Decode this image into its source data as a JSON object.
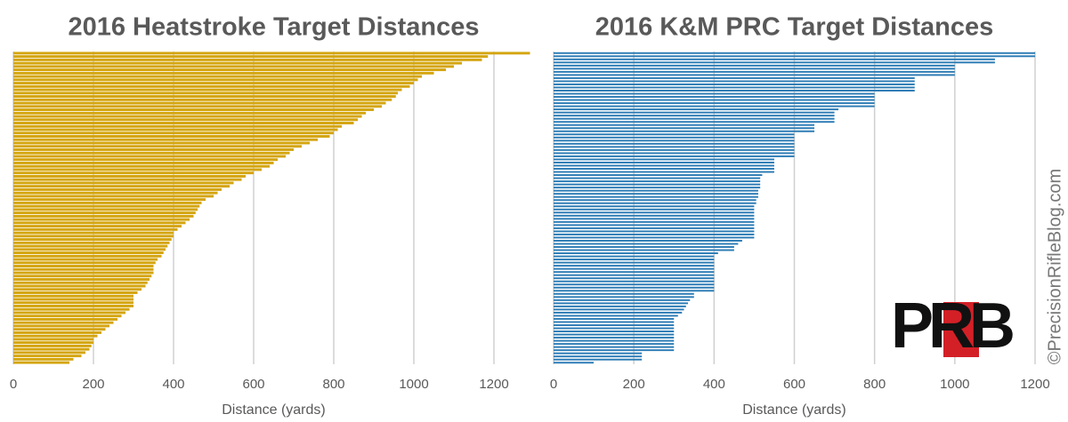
{
  "chart_data": [
    {
      "type": "bar",
      "orientation": "horizontal",
      "title": "2016 Heatstroke Target Distances",
      "x_label": "Distance (yards)",
      "color": "#d4a50f",
      "xlim": [
        0,
        1300
      ],
      "xticks": [
        0,
        200,
        400,
        600,
        800,
        1000,
        1200
      ],
      "grid": true,
      "categories": [
        null,
        null,
        null,
        null,
        null,
        null,
        null,
        null,
        null,
        null,
        null,
        null,
        null,
        null,
        null,
        null,
        null,
        null,
        null,
        null,
        null,
        null,
        null,
        null,
        null,
        null,
        null,
        null,
        null,
        null,
        null,
        null,
        null,
        null,
        null,
        null,
        null,
        null,
        null,
        null,
        null,
        null,
        null,
        null,
        null,
        null,
        null,
        null,
        null,
        null,
        null,
        null,
        null,
        null,
        null,
        null,
        null,
        null,
        null,
        null,
        null,
        null,
        null,
        null,
        null,
        null,
        null,
        null,
        null,
        null,
        null,
        null,
        null,
        null,
        null,
        null,
        null,
        null,
        null,
        null,
        null,
        null,
        null,
        null,
        null,
        null,
        null,
        null,
        null,
        null,
        null,
        null,
        null,
        null
      ],
      "values": [
        1290,
        1185,
        1170,
        1120,
        1100,
        1080,
        1050,
        1020,
        1010,
        1000,
        990,
        970,
        960,
        955,
        945,
        930,
        920,
        900,
        880,
        870,
        860,
        850,
        820,
        810,
        800,
        790,
        760,
        740,
        720,
        700,
        690,
        680,
        660,
        650,
        640,
        620,
        600,
        580,
        570,
        550,
        540,
        520,
        510,
        500,
        480,
        470,
        465,
        460,
        455,
        450,
        440,
        430,
        420,
        410,
        400,
        400,
        395,
        390,
        385,
        380,
        375,
        370,
        360,
        355,
        350,
        350,
        350,
        345,
        340,
        335,
        330,
        320,
        310,
        300,
        300,
        300,
        300,
        290,
        280,
        270,
        260,
        250,
        240,
        230,
        220,
        210,
        200,
        200,
        195,
        190,
        180,
        170,
        150,
        140
      ]
    },
    {
      "type": "bar",
      "orientation": "horizontal",
      "title": "2016 K&M PRC Target Distances",
      "x_label": "Distance (yards)",
      "color": "#2b7bb4",
      "xlim": [
        0,
        1200
      ],
      "xticks": [
        0,
        200,
        400,
        600,
        800,
        1000,
        1200
      ],
      "grid": true,
      "categories": [
        null,
        null,
        null,
        null,
        null,
        null,
        null,
        null,
        null,
        null,
        null,
        null,
        null,
        null,
        null,
        null,
        null,
        null,
        null,
        null,
        null,
        null,
        null,
        null,
        null,
        null,
        null,
        null,
        null,
        null,
        null,
        null,
        null,
        null,
        null,
        null,
        null,
        null,
        null,
        null,
        null,
        null,
        null,
        null,
        null,
        null,
        null,
        null,
        null,
        null,
        null,
        null,
        null,
        null,
        null,
        null,
        null,
        null,
        null,
        null,
        null,
        null,
        null,
        null,
        null,
        null,
        null,
        null,
        null,
        null,
        null,
        null,
        null,
        null,
        null,
        null,
        null,
        null,
        null,
        null,
        null,
        null,
        null,
        null,
        null,
        null,
        null,
        null,
        null,
        null,
        null,
        null,
        null,
        null,
        null,
        null,
        null,
        null,
        null,
        null
      ],
      "values": [
        1200,
        1200,
        1100,
        1100,
        1000,
        1000,
        1000,
        1000,
        900,
        900,
        900,
        900,
        900,
        800,
        800,
        800,
        800,
        800,
        710,
        700,
        700,
        700,
        700,
        650,
        650,
        650,
        600,
        600,
        600,
        600,
        600,
        600,
        600,
        600,
        550,
        550,
        550,
        550,
        550,
        520,
        515,
        515,
        515,
        515,
        510,
        510,
        510,
        505,
        505,
        500,
        500,
        500,
        500,
        500,
        500,
        500,
        500,
        500,
        500,
        500,
        470,
        460,
        450,
        450,
        410,
        400,
        400,
        400,
        400,
        400,
        400,
        400,
        400,
        400,
        400,
        400,
        400,
        350,
        350,
        340,
        335,
        330,
        325,
        320,
        310,
        300,
        300,
        300,
        300,
        300,
        300,
        300,
        300,
        300,
        300,
        300,
        220,
        220,
        220,
        100
      ]
    }
  ],
  "logo": "PRB",
  "watermark": "©PrecisionRifleBlog.com"
}
